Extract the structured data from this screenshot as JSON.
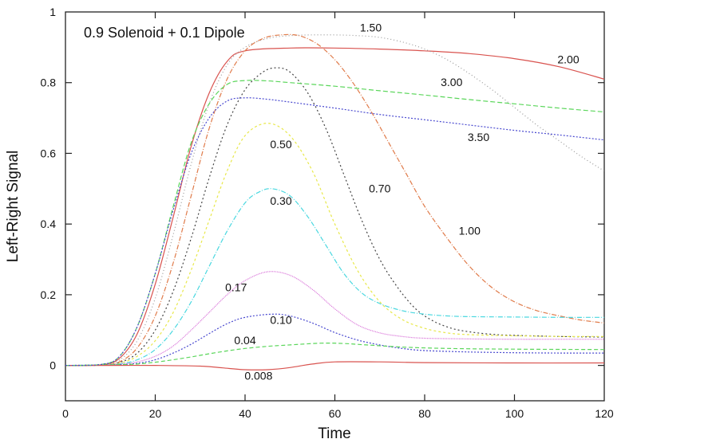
{
  "chart_data": {
    "type": "line",
    "title": "0.9 Solenoid + 0.1 Dipole",
    "xlabel": "Time",
    "ylabel": "Left-Right Signal",
    "xlim": [
      0,
      120
    ],
    "ylim": [
      -0.1,
      1
    ],
    "xticks": [
      0,
      20,
      40,
      60,
      80,
      100,
      120
    ],
    "xtick_labels": [
      "0",
      "20",
      "40",
      "60",
      "80",
      "100",
      "120"
    ],
    "yticks": [
      0,
      0.2,
      0.4,
      0.6,
      0.8,
      1
    ],
    "ytick_labels": [
      "0",
      "0.2",
      "0.4",
      "0.6",
      "0.8",
      "1"
    ],
    "grid": false,
    "legend": "inline curve labels",
    "series": [
      {
        "name": "2.00",
        "color": "#d9534f",
        "dash": "solid",
        "x": [
          0,
          8,
          12,
          16,
          20,
          24,
          28,
          32,
          36,
          40,
          50,
          60,
          70,
          80,
          90,
          100,
          110,
          120
        ],
        "y": [
          0,
          0.002,
          0.02,
          0.09,
          0.23,
          0.42,
          0.62,
          0.77,
          0.86,
          0.89,
          0.898,
          0.898,
          0.895,
          0.89,
          0.882,
          0.868,
          0.845,
          0.81
        ],
        "label": {
          "text": "2.00",
          "x": 112,
          "y": 0.855
        }
      },
      {
        "name": "1.50",
        "color": "#9a9a9a",
        "dash": "1,3",
        "x": [
          0,
          8,
          12,
          16,
          20,
          24,
          28,
          32,
          36,
          40,
          45,
          50,
          55,
          60,
          65,
          70,
          75,
          80,
          85,
          90,
          95,
          100,
          105,
          110,
          115,
          120
        ],
        "y": [
          0,
          0.002,
          0.015,
          0.07,
          0.19,
          0.37,
          0.57,
          0.74,
          0.85,
          0.9,
          0.925,
          0.933,
          0.935,
          0.935,
          0.933,
          0.928,
          0.915,
          0.895,
          0.865,
          0.825,
          0.78,
          0.73,
          0.68,
          0.635,
          0.59,
          0.55
        ],
        "label": {
          "text": "1.50",
          "x": 68,
          "y": 0.945
        }
      },
      {
        "name": "1.00",
        "color": "#e07b4a",
        "dash": "6,2,1,2",
        "x": [
          0,
          8,
          12,
          16,
          20,
          24,
          28,
          32,
          36,
          40,
          44,
          48,
          52,
          56,
          60,
          64,
          68,
          72,
          76,
          80,
          85,
          90,
          95,
          100,
          105,
          110,
          115,
          120
        ],
        "y": [
          0,
          0.001,
          0.01,
          0.05,
          0.14,
          0.29,
          0.48,
          0.67,
          0.81,
          0.89,
          0.925,
          0.935,
          0.933,
          0.91,
          0.865,
          0.8,
          0.72,
          0.63,
          0.54,
          0.45,
          0.36,
          0.28,
          0.22,
          0.18,
          0.155,
          0.14,
          0.128,
          0.12
        ],
        "label": {
          "text": "1.00",
          "x": 90,
          "y": 0.37
        }
      },
      {
        "name": "0.70",
        "color": "#444444",
        "dash": "2,3",
        "x": [
          0,
          8,
          12,
          16,
          20,
          24,
          28,
          32,
          36,
          40,
          44,
          47,
          50,
          54,
          58,
          62,
          66,
          70,
          74,
          78,
          82,
          86,
          90,
          95,
          100,
          110,
          120
        ],
        "y": [
          0,
          0.001,
          0.008,
          0.035,
          0.1,
          0.21,
          0.36,
          0.53,
          0.68,
          0.78,
          0.83,
          0.842,
          0.83,
          0.77,
          0.67,
          0.54,
          0.41,
          0.3,
          0.22,
          0.16,
          0.125,
          0.105,
          0.095,
          0.088,
          0.085,
          0.082,
          0.08
        ],
        "label": {
          "text": "0.70",
          "x": 70,
          "y": 0.49
        }
      },
      {
        "name": "0.50",
        "color": "#e8e84a",
        "dash": "3,3",
        "x": [
          0,
          8,
          12,
          16,
          20,
          24,
          28,
          32,
          36,
          40,
          45,
          50,
          55,
          60,
          65,
          70,
          75,
          80,
          85,
          90,
          100,
          110,
          120
        ],
        "y": [
          0,
          0.001,
          0.006,
          0.026,
          0.07,
          0.15,
          0.27,
          0.41,
          0.55,
          0.65,
          0.685,
          0.65,
          0.55,
          0.4,
          0.27,
          0.18,
          0.13,
          0.105,
          0.092,
          0.087,
          0.084,
          0.082,
          0.082
        ],
        "label": {
          "text": "0.50",
          "x": 48,
          "y": 0.615
        }
      },
      {
        "name": "0.30",
        "color": "#4ad8e0",
        "dash": "6,2,1,2",
        "x": [
          0,
          8,
          12,
          16,
          20,
          24,
          28,
          32,
          36,
          40,
          43,
          46,
          50,
          54,
          58,
          62,
          66,
          70,
          75,
          80,
          85,
          90,
          100,
          110,
          120
        ],
        "y": [
          0,
          0.001,
          0.004,
          0.016,
          0.045,
          0.1,
          0.18,
          0.28,
          0.38,
          0.46,
          0.49,
          0.5,
          0.48,
          0.42,
          0.34,
          0.26,
          0.205,
          0.175,
          0.155,
          0.145,
          0.14,
          0.138,
          0.137,
          0.136,
          0.136
        ],
        "label": {
          "text": "0.30",
          "x": 48,
          "y": 0.455
        }
      },
      {
        "name": "0.17",
        "color": "#d66ad6",
        "dash": "1,1",
        "x": [
          0,
          8,
          12,
          16,
          20,
          24,
          28,
          32,
          36,
          40,
          45,
          50,
          55,
          60,
          65,
          70,
          75,
          80,
          90,
          100,
          110,
          120
        ],
        "y": [
          0,
          0.001,
          0.003,
          0.01,
          0.026,
          0.055,
          0.1,
          0.15,
          0.2,
          0.24,
          0.265,
          0.255,
          0.215,
          0.16,
          0.115,
          0.092,
          0.082,
          0.077,
          0.075,
          0.074,
          0.074,
          0.074
        ],
        "label": {
          "text": "0.17",
          "x": 38,
          "y": 0.21
        }
      },
      {
        "name": "0.10",
        "color": "#4a4ad0",
        "dash": "2,2",
        "x": [
          0,
          8,
          12,
          16,
          20,
          24,
          28,
          32,
          36,
          40,
          46,
          50,
          55,
          60,
          65,
          70,
          75,
          80,
          90,
          100,
          110,
          120
        ],
        "y": [
          0,
          0.001,
          0.002,
          0.006,
          0.016,
          0.035,
          0.06,
          0.09,
          0.118,
          0.136,
          0.145,
          0.14,
          0.12,
          0.093,
          0.072,
          0.058,
          0.048,
          0.042,
          0.038,
          0.036,
          0.035,
          0.035
        ],
        "label": {
          "text": "0.10",
          "x": 48,
          "y": 0.118
        }
      },
      {
        "name": "0.04",
        "color": "#5ad65a",
        "dash": "5,3",
        "x": [
          0,
          8,
          12,
          16,
          20,
          24,
          28,
          32,
          36,
          40,
          45,
          50,
          57,
          62,
          67,
          75,
          85,
          100,
          120
        ],
        "y": [
          0,
          0.001,
          0.002,
          0.004,
          0.009,
          0.016,
          0.024,
          0.033,
          0.041,
          0.048,
          0.054,
          0.058,
          0.063,
          0.062,
          0.058,
          0.052,
          0.048,
          0.046,
          0.045
        ],
        "label": {
          "text": "0.04",
          "x": 40,
          "y": 0.06
        }
      },
      {
        "name": "0.008",
        "color": "#d9534f",
        "dash": "solid",
        "x": [
          0,
          10,
          20,
          30,
          35,
          40,
          45,
          50,
          55,
          60,
          70,
          80,
          100,
          120
        ],
        "y": [
          0,
          0,
          0,
          -0.002,
          -0.007,
          -0.012,
          -0.012,
          -0.006,
          0.004,
          0.01,
          0.01,
          0.008,
          0.007,
          0.007
        ],
        "label": {
          "text": "0.008",
          "x": 43,
          "y": -0.04
        }
      },
      {
        "name": "3.00",
        "color": "#5ad65a",
        "dash": "6,3",
        "x": [
          0,
          8,
          12,
          16,
          20,
          24,
          28,
          32,
          36,
          40,
          45,
          50,
          60,
          70,
          80,
          90,
          100,
          110,
          120
        ],
        "y": [
          0,
          0.003,
          0.025,
          0.11,
          0.26,
          0.45,
          0.63,
          0.74,
          0.795,
          0.806,
          0.805,
          0.8,
          0.79,
          0.777,
          0.765,
          0.752,
          0.74,
          0.728,
          0.717
        ],
        "label": {
          "text": "3.00",
          "x": 86,
          "y": 0.79
        }
      },
      {
        "name": "3.50",
        "color": "#4a4ad0",
        "dash": "2,2",
        "x": [
          0,
          8,
          12,
          16,
          20,
          24,
          28,
          32,
          36,
          40,
          45,
          50,
          60,
          70,
          80,
          90,
          100,
          110,
          120
        ],
        "y": [
          0,
          0.003,
          0.025,
          0.11,
          0.26,
          0.44,
          0.6,
          0.7,
          0.748,
          0.757,
          0.753,
          0.745,
          0.728,
          0.71,
          0.695,
          0.68,
          0.665,
          0.652,
          0.638
        ],
        "label": {
          "text": "3.50",
          "x": 92,
          "y": 0.635
        }
      }
    ]
  }
}
